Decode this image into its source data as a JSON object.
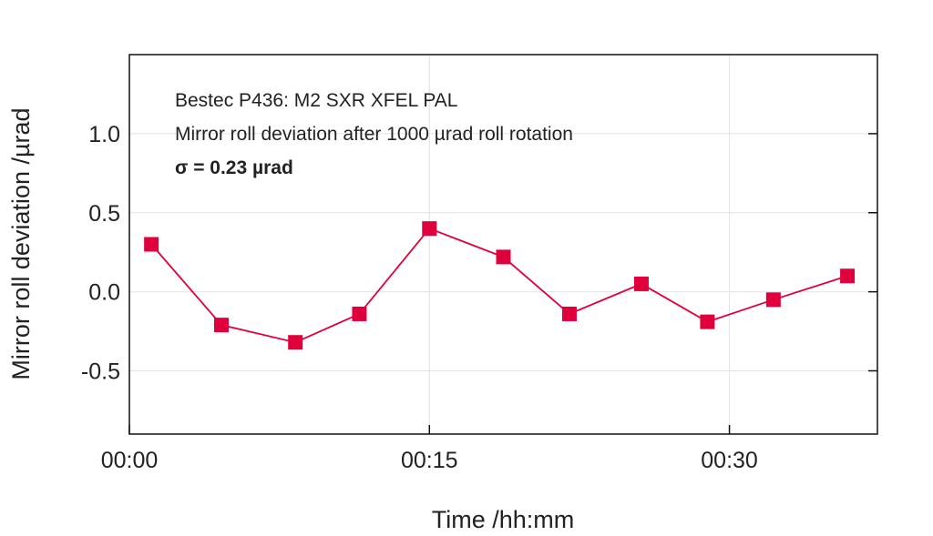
{
  "chart_data": {
    "type": "line",
    "title": "",
    "annotations": [
      "Bestec P436: M2 SXR XFEL PAL",
      "Mirror roll deviation after 1000 µrad roll rotation",
      "σ = 0.23 µrad"
    ],
    "xlabel": "Time /hh:mm",
    "ylabel": "Mirror roll deviation /µrad",
    "xlim": [
      0,
      37.4
    ],
    "ylim": [
      -0.9,
      1.5
    ],
    "xticks": [
      {
        "value": 0,
        "label": "00:00"
      },
      {
        "value": 15,
        "label": "00:15"
      },
      {
        "value": 30,
        "label": "00:30"
      }
    ],
    "yticks": [
      {
        "value": 1.0,
        "label": "1.0"
      },
      {
        "value": 0.5,
        "label": "0.5"
      },
      {
        "value": 0.0,
        "label": "0.0"
      },
      {
        "value": -0.5,
        "label": "-0.5"
      }
    ],
    "grid": true,
    "series": [
      {
        "name": "Mirror roll deviation",
        "color": "#e0003c",
        "marker": "square",
        "x": [
          1.1,
          4.6,
          8.3,
          11.5,
          15.0,
          18.7,
          22.0,
          25.6,
          28.9,
          32.2,
          35.9
        ],
        "values": [
          0.3,
          -0.21,
          -0.32,
          -0.14,
          0.4,
          0.22,
          -0.14,
          0.05,
          -0.19,
          -0.05,
          0.1
        ]
      }
    ]
  }
}
